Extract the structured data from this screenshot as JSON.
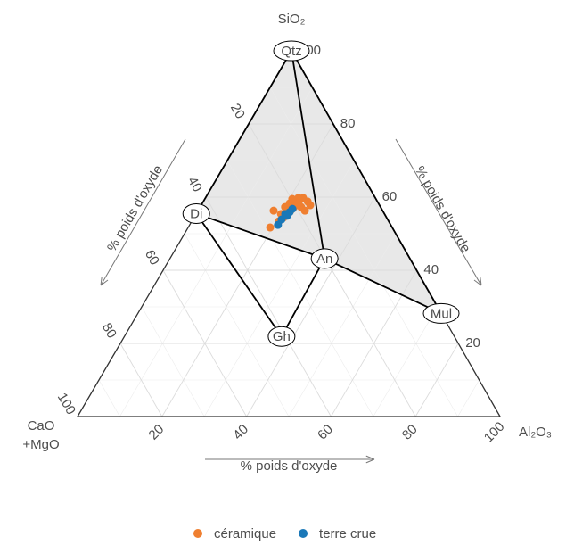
{
  "chart_data": {
    "type": "ternary",
    "vertices": {
      "top": "SiO₂",
      "right": "Al₂O₃",
      "left": [
        "CaO",
        "+MgO"
      ]
    },
    "axes": {
      "sio2": {
        "label": "% poids d'oxyde",
        "ticks": [
          20,
          40,
          60,
          80,
          100
        ]
      },
      "cao_mgo": {
        "label": "% poids d'oxyde",
        "ticks": [
          20,
          40,
          60,
          80,
          100
        ]
      },
      "al2o3": {
        "label": "% poids d'oxyde",
        "ticks": [
          20,
          40,
          60,
          80,
          100
        ]
      }
    },
    "grid": true,
    "minor_grid": [
      10,
      30,
      50,
      70,
      90
    ],
    "nodes": [
      {
        "label": "Qtz",
        "sio2": 100,
        "cao_mgo": 0,
        "al2o3": 0
      },
      {
        "label": "Di",
        "sio2": 55.5,
        "cao_mgo": 44.5,
        "al2o3": 0
      },
      {
        "label": "An",
        "sio2": 43.2,
        "cao_mgo": 20.2,
        "al2o3": 36.6
      },
      {
        "label": "Mul",
        "sio2": 28.2,
        "cao_mgo": 0,
        "al2o3": 71.8
      },
      {
        "label": "Gh",
        "sio2": 21.9,
        "cao_mgo": 40.9,
        "al2o3": 37.2
      }
    ],
    "legend": "bottom",
    "series": [
      {
        "name": "céramique",
        "color": "#ef7f30",
        "sio2": [
          51.7,
          56.3,
          55.4,
          57.3,
          58.3,
          59.0,
          59.8,
          59.8,
          58.8,
          57.8,
          56.3,
          57.3,
          57.3,
          56.3,
          54.4,
          53.4,
          58.3,
          59.5
        ],
        "cao_mgo": [
          28.9,
          25.8,
          24.5,
          22.6,
          21.0,
          19.6,
          18.2,
          17.1,
          16.5,
          16.4,
          18.4,
          18.8,
          20.5,
          21.8,
          24.4,
          26.0,
          18.9,
          19.8
        ],
        "al2o3": [
          19.4,
          17.9,
          20.1,
          20.1,
          20.7,
          21.4,
          22.0,
          23.1,
          24.7,
          25.8,
          25.3,
          23.9,
          22.2,
          21.9,
          21.2,
          20.6,
          22.8,
          20.7
        ]
      },
      {
        "name": "terre crue",
        "color": "#1a78b8",
        "sio2": [
          52.4,
          53.9,
          55.4,
          55.9,
          56.8,
          54.9
        ],
        "cao_mgo": [
          26.7,
          25.1,
          23.5,
          22.2,
          21.1,
          23.3
        ],
        "al2o3": [
          20.9,
          21.0,
          21.1,
          21.9,
          22.1,
          21.8
        ]
      }
    ]
  }
}
